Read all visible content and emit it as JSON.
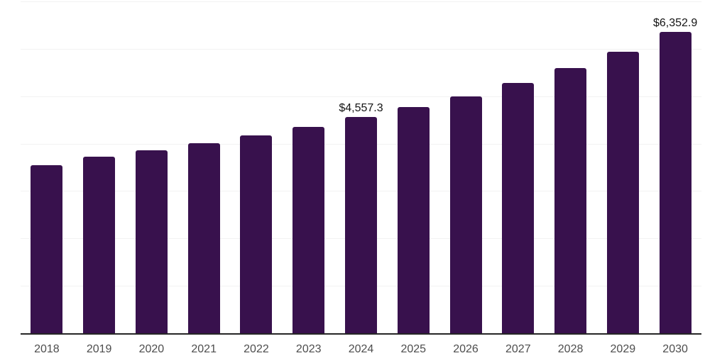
{
  "chart_data": {
    "type": "bar",
    "title": "",
    "xlabel": "",
    "ylabel": "",
    "categories": [
      "2018",
      "2019",
      "2020",
      "2021",
      "2022",
      "2023",
      "2024",
      "2025",
      "2026",
      "2027",
      "2028",
      "2029",
      "2030"
    ],
    "values": [
      3540,
      3720,
      3855,
      4010,
      4170,
      4360,
      4557.3,
      4770,
      5000,
      5280,
      5595,
      5945,
      6352.9
    ],
    "data_labels": [
      {
        "category": "2024",
        "text": "$4,557.3"
      },
      {
        "category": "2030",
        "text": "$6,352.9"
      }
    ],
    "ylim": [
      0,
      7000
    ],
    "gridline_step": 1000,
    "grid": "horizontal-only",
    "y_tick_labels_visible": false,
    "legend": "none"
  },
  "style": {
    "bar_color": "#38114d",
    "gridline_color": "#f2f2f2",
    "axis_color": "#262626",
    "tick_label_color": "#4d4d4d",
    "data_label_color": "#141414",
    "background_color": "#ffffff"
  }
}
